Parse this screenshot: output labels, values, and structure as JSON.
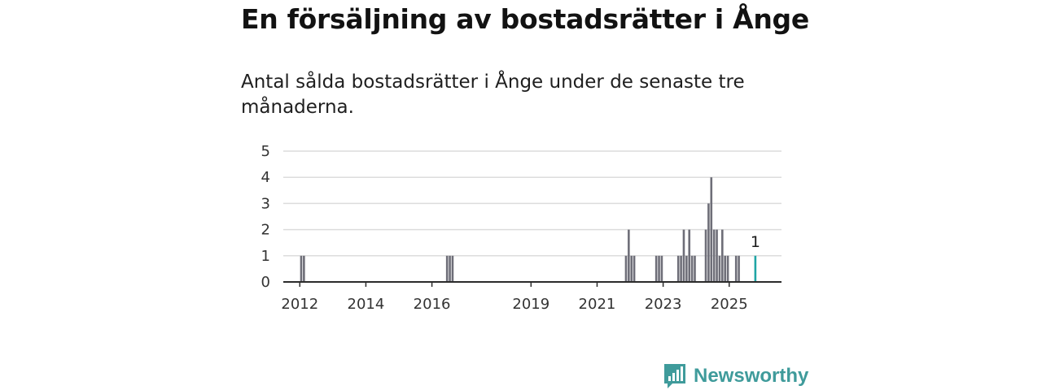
{
  "header": {
    "title": "En försäljning av bostadsrätter i Ånge",
    "subtitle": "Antal sålda bostadsrätter i Ånge under de senaste tre månaderna."
  },
  "brand": {
    "name": "Newsworthy",
    "color": "#3f9b9b",
    "icon": "bar-chart-logo-icon"
  },
  "chart_data": {
    "type": "bar",
    "title": "",
    "xlabel": "",
    "ylabel": "",
    "ylim": [
      0,
      5
    ],
    "y_ticks": [
      0,
      1,
      2,
      3,
      4,
      5
    ],
    "x_range": [
      "2011-07",
      "2026-08"
    ],
    "x_ticks": [
      "2012",
      "2014",
      "2016",
      "2019",
      "2021",
      "2023",
      "2025"
    ],
    "grid": true,
    "bar_color": "#6e6e78",
    "highlight_color": "#1fa5a5",
    "series": [
      {
        "values": [
          {
            "date": "2012-01",
            "value": 1
          },
          {
            "date": "2012-02",
            "value": 1
          },
          {
            "date": "2016-06",
            "value": 1
          },
          {
            "date": "2016-07",
            "value": 1
          },
          {
            "date": "2016-08",
            "value": 1
          },
          {
            "date": "2021-11",
            "value": 1
          },
          {
            "date": "2021-12",
            "value": 2
          },
          {
            "date": "2022-01",
            "value": 1
          },
          {
            "date": "2022-02",
            "value": 1
          },
          {
            "date": "2022-10",
            "value": 1
          },
          {
            "date": "2022-11",
            "value": 1
          },
          {
            "date": "2022-12",
            "value": 1
          },
          {
            "date": "2023-06",
            "value": 1
          },
          {
            "date": "2023-07",
            "value": 1
          },
          {
            "date": "2023-08",
            "value": 2
          },
          {
            "date": "2023-09",
            "value": 1
          },
          {
            "date": "2023-10",
            "value": 2
          },
          {
            "date": "2023-11",
            "value": 1
          },
          {
            "date": "2023-12",
            "value": 1
          },
          {
            "date": "2024-04",
            "value": 2
          },
          {
            "date": "2024-05",
            "value": 3
          },
          {
            "date": "2024-06",
            "value": 4
          },
          {
            "date": "2024-07",
            "value": 2
          },
          {
            "date": "2024-08",
            "value": 2
          },
          {
            "date": "2024-09",
            "value": 1
          },
          {
            "date": "2024-10",
            "value": 2
          },
          {
            "date": "2024-11",
            "value": 1
          },
          {
            "date": "2024-12",
            "value": 1
          },
          {
            "date": "2025-03",
            "value": 1
          },
          {
            "date": "2025-04",
            "value": 1
          }
        ]
      }
    ],
    "highlight": {
      "date": "2025-10",
      "value": 1,
      "label": "1"
    }
  }
}
